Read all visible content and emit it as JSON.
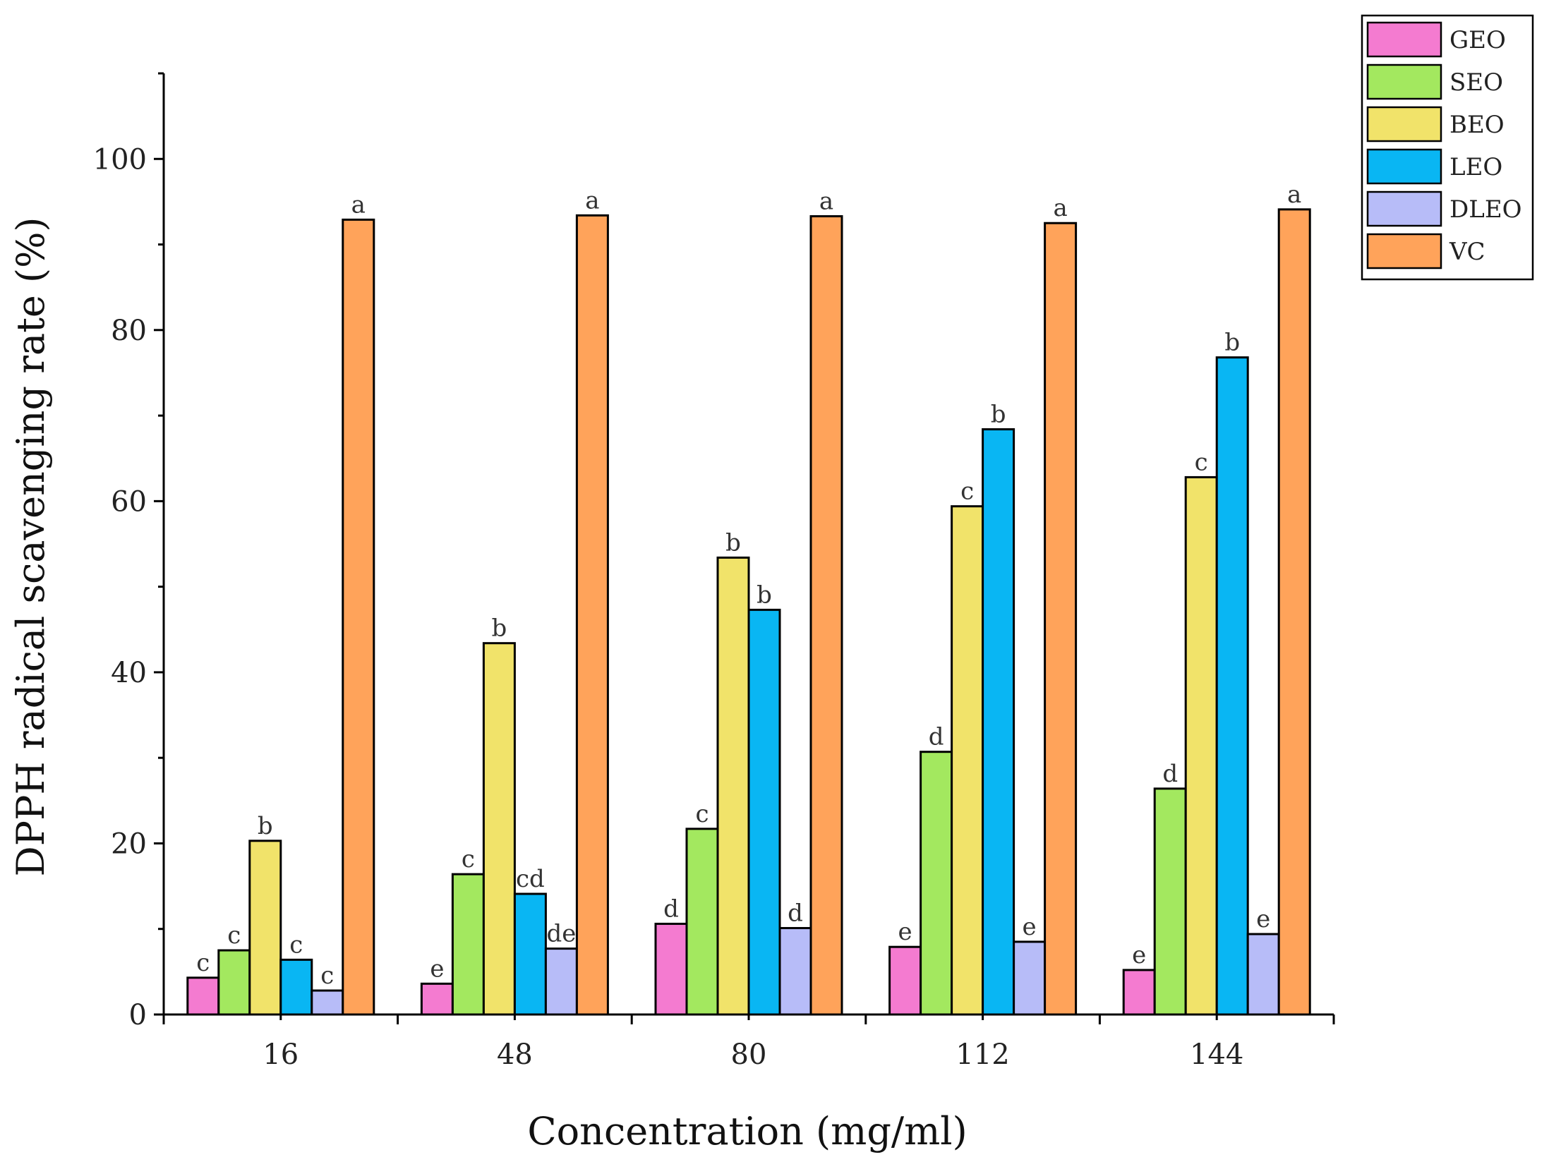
{
  "chart_data": {
    "type": "bar",
    "title": "",
    "xlabel": "Concentration (mg/ml)",
    "ylabel": "DPPH radical scavenging rate (%)",
    "categories": [
      "16",
      "48",
      "80",
      "112",
      "144"
    ],
    "ylim": [
      0,
      110
    ],
    "yticks": [
      0,
      20,
      40,
      60,
      80,
      100
    ],
    "legend_position": "top-right",
    "grid": false,
    "series": [
      {
        "name": "GEO",
        "color": "#f47bd0",
        "values": [
          4.3,
          3.6,
          10.6,
          7.9,
          5.2
        ],
        "letters": [
          "c",
          "e",
          "d",
          "e",
          "e"
        ]
      },
      {
        "name": "SEO",
        "color": "#a3e85f",
        "values": [
          7.5,
          16.4,
          21.7,
          30.7,
          26.4
        ],
        "letters": [
          "c",
          "c",
          "c",
          "d",
          "d"
        ]
      },
      {
        "name": "BEO",
        "color": "#f1e36a",
        "values": [
          20.3,
          43.4,
          53.4,
          59.4,
          62.8
        ],
        "letters": [
          "b",
          "b",
          "b",
          "c",
          "c"
        ]
      },
      {
        "name": "LEO",
        "color": "#09b6f3",
        "values": [
          6.4,
          14.1,
          47.3,
          68.4,
          76.8
        ],
        "letters": [
          "c",
          "cd",
          "b",
          "b",
          "b"
        ]
      },
      {
        "name": "DLEO",
        "color": "#b7bcf8",
        "values": [
          2.8,
          7.7,
          10.1,
          8.5,
          9.4
        ],
        "letters": [
          "c",
          "de",
          "d",
          "e",
          "e"
        ]
      },
      {
        "name": "VC",
        "color": "#ffa35a",
        "values": [
          92.9,
          93.4,
          93.3,
          92.5,
          94.1
        ],
        "letters": [
          "a",
          "a",
          "a",
          "a",
          "a"
        ]
      }
    ]
  }
}
